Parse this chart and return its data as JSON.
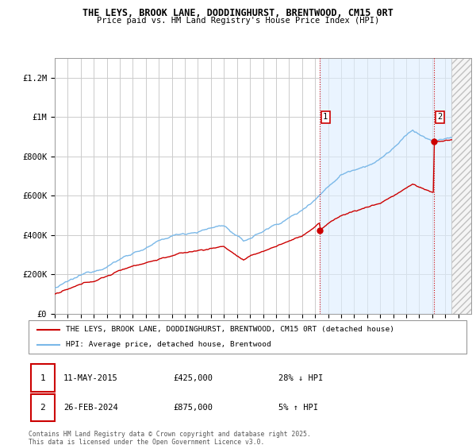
{
  "title": "THE LEYS, BROOK LANE, DODDINGHURST, BRENTWOOD, CM15 0RT",
  "subtitle": "Price paid vs. HM Land Registry's House Price Index (HPI)",
  "hpi_label": "HPI: Average price, detached house, Brentwood",
  "property_label": "THE LEYS, BROOK LANE, DODDINGHURST, BRENTWOOD, CM15 0RT (detached house)",
  "hpi_color": "#7ab8e8",
  "property_color": "#cc0000",
  "annotation1_date": "11-MAY-2015",
  "annotation1_price": 425000,
  "annotation1_text": "28% ↓ HPI",
  "annotation1_year": 2015.36,
  "annotation2_date": "26-FEB-2024",
  "annotation2_price": 875000,
  "annotation2_text": "5% ↑ HPI",
  "annotation2_year": 2024.16,
  "ylim": [
    0,
    1300000
  ],
  "xlim_start": 1995,
  "xlim_end": 2027,
  "yticks": [
    0,
    200000,
    400000,
    600000,
    800000,
    1000000,
    1200000
  ],
  "ytick_labels": [
    "£0",
    "£200K",
    "£400K",
    "£600K",
    "£800K",
    "£1M",
    "£1.2M"
  ],
  "footer": "Contains HM Land Registry data © Crown copyright and database right 2025.\nThis data is licensed under the Open Government Licence v3.0.",
  "background_color": "#ffffff",
  "grid_color": "#cccccc",
  "shade_color": "#ddeeff",
  "hatch_end": 2025.5
}
